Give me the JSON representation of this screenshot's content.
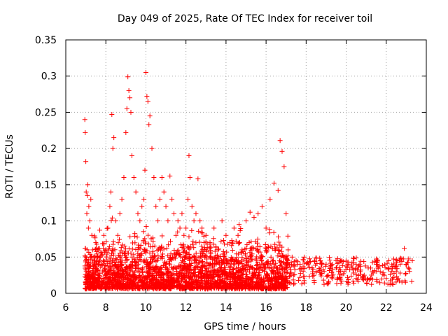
{
  "chart_data": {
    "type": "scatter",
    "title": "Day 049 of 2025, Rate Of TEC Index for receiver toil",
    "xlabel": "GPS time / hours",
    "ylabel": "ROTI / TECUs",
    "xlim": [
      6,
      24
    ],
    "ylim": [
      0,
      0.35
    ],
    "xticks": [
      6,
      8,
      10,
      12,
      14,
      16,
      18,
      20,
      22,
      24
    ],
    "xtick_labels": [
      "6",
      "8",
      "10",
      "12",
      "14",
      "16",
      "18",
      "20",
      "22",
      "24"
    ],
    "yticks": [
      0,
      0.05,
      0.1,
      0.15,
      0.2,
      0.25,
      0.3,
      0.35
    ],
    "ytick_labels": [
      "0",
      "0.05",
      "0.1",
      "0.15",
      "0.2",
      "0.25",
      "0.3",
      "0.35"
    ],
    "grid": true,
    "marker": "+",
    "color": "#ff0000",
    "series": [
      {
        "name": "ROTI",
        "x": [
          6.95,
          6.97,
          7.0,
          7.02,
          7.05,
          7.08,
          7.1,
          7.13,
          7.15,
          7.2,
          7.25,
          7.3,
          7.35,
          7.4,
          7.45,
          7.5,
          7.6,
          7.7,
          7.8,
          7.9,
          8.0,
          8.1,
          8.2,
          8.25,
          8.3,
          8.35,
          8.4,
          8.5,
          8.6,
          8.7,
          8.8,
          8.9,
          9.0,
          9.05,
          9.1,
          9.15,
          9.2,
          9.25,
          9.3,
          9.4,
          9.5,
          9.6,
          9.7,
          9.8,
          9.9,
          9.95,
          10.0,
          10.05,
          10.1,
          10.15,
          10.2,
          10.3,
          10.4,
          10.5,
          10.6,
          10.7,
          10.8,
          10.9,
          11.0,
          11.1,
          11.2,
          11.3,
          11.4,
          11.5,
          11.6,
          11.7,
          11.8,
          11.9,
          12.0,
          12.1,
          12.15,
          12.2,
          12.3,
          12.4,
          12.5,
          12.6,
          12.7,
          12.8,
          12.9,
          13.0,
          13.2,
          13.4,
          13.6,
          13.8,
          14.0,
          14.2,
          14.4,
          14.6,
          14.8,
          15.0,
          15.2,
          15.4,
          15.6,
          15.8,
          16.0,
          16.2,
          16.4,
          16.6,
          16.7,
          16.8,
          16.9,
          17.0,
          17.1,
          17.3,
          17.5,
          17.7,
          17.9,
          18.1,
          18.3,
          18.5,
          18.7,
          18.9,
          19.1,
          19.3,
          19.5,
          19.7,
          19.9,
          20.1,
          20.3,
          20.5,
          20.7,
          20.9,
          21.1,
          21.3,
          21.5,
          21.7,
          21.9,
          22.1,
          22.3,
          22.5,
          22.7,
          22.9,
          23.1,
          23.3
        ],
        "y": [
          0.24,
          0.222,
          0.182,
          0.14,
          0.11,
          0.135,
          0.15,
          0.09,
          0.12,
          0.1,
          0.13,
          0.08,
          0.06,
          0.05,
          0.04,
          0.07,
          0.06,
          0.05,
          0.04,
          0.08,
          0.06,
          0.09,
          0.12,
          0.14,
          0.247,
          0.2,
          0.215,
          0.1,
          0.08,
          0.11,
          0.13,
          0.16,
          0.222,
          0.255,
          0.299,
          0.28,
          0.27,
          0.25,
          0.19,
          0.16,
          0.14,
          0.11,
          0.1,
          0.12,
          0.13,
          0.17,
          0.305,
          0.272,
          0.265,
          0.233,
          0.245,
          0.2,
          0.16,
          0.12,
          0.1,
          0.13,
          0.16,
          0.14,
          0.12,
          0.1,
          0.162,
          0.13,
          0.11,
          0.08,
          0.1,
          0.09,
          0.11,
          0.08,
          0.09,
          0.13,
          0.19,
          0.16,
          0.12,
          0.1,
          0.11,
          0.158,
          0.1,
          0.09,
          0.07,
          0.08,
          0.07,
          0.09,
          0.06,
          0.1,
          0.08,
          0.07,
          0.09,
          0.08,
          0.06,
          0.1,
          0.112,
          0.105,
          0.11,
          0.12,
          0.09,
          0.13,
          0.152,
          0.142,
          0.211,
          0.196,
          0.175,
          0.11,
          0.06,
          0.05,
          0.045,
          0.04,
          0.05,
          0.04,
          0.035,
          0.03,
          0.045,
          0.03,
          0.025,
          0.04,
          0.035,
          0.045,
          0.03,
          0.04,
          0.035,
          0.04,
          0.03,
          0.025,
          0.035,
          0.03,
          0.04,
          0.03,
          0.025,
          0.035,
          0.02,
          0.03,
          0.04,
          0.062,
          0.035,
          0.045
        ]
      }
    ]
  }
}
